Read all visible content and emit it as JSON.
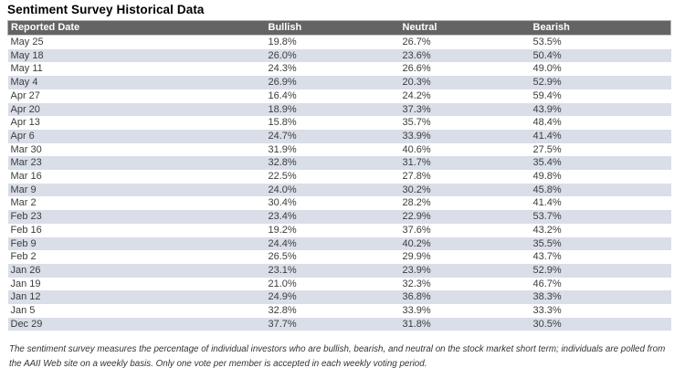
{
  "title": "Sentiment Survey Historical Data",
  "colors": {
    "header_bg": "#646464",
    "header_text": "#ffffff",
    "row_alt_bg": "#d9dee8",
    "body_text": "#3d3d3d"
  },
  "chart_data": {
    "type": "table",
    "title": "Sentiment Survey Historical Data",
    "columns": [
      "Reported Date",
      "Bullish",
      "Neutral",
      "Bearish"
    ],
    "rows": [
      [
        "May 25",
        "19.8%",
        "26.7%",
        "53.5%"
      ],
      [
        "May 18",
        "26.0%",
        "23.6%",
        "50.4%"
      ],
      [
        "May 11",
        "24.3%",
        "26.6%",
        "49.0%"
      ],
      [
        "May 4",
        "26.9%",
        "20.3%",
        "52.9%"
      ],
      [
        "Apr 27",
        "16.4%",
        "24.2%",
        "59.4%"
      ],
      [
        "Apr 20",
        "18.9%",
        "37.3%",
        "43.9%"
      ],
      [
        "Apr 13",
        "15.8%",
        "35.7%",
        "48.4%"
      ],
      [
        "Apr 6",
        "24.7%",
        "33.9%",
        "41.4%"
      ],
      [
        "Mar 30",
        "31.9%",
        "40.6%",
        "27.5%"
      ],
      [
        "Mar 23",
        "32.8%",
        "31.7%",
        "35.4%"
      ],
      [
        "Mar 16",
        "22.5%",
        "27.8%",
        "49.8%"
      ],
      [
        "Mar 9",
        "24.0%",
        "30.2%",
        "45.8%"
      ],
      [
        "Mar 2",
        "30.4%",
        "28.2%",
        "41.4%"
      ],
      [
        "Feb 23",
        "23.4%",
        "22.9%",
        "53.7%"
      ],
      [
        "Feb 16",
        "19.2%",
        "37.6%",
        "43.2%"
      ],
      [
        "Feb 9",
        "24.4%",
        "40.2%",
        "35.5%"
      ],
      [
        "Feb 2",
        "26.5%",
        "29.9%",
        "43.7%"
      ],
      [
        "Jan 26",
        "23.1%",
        "23.9%",
        "52.9%"
      ],
      [
        "Jan 19",
        "21.0%",
        "32.3%",
        "46.7%"
      ],
      [
        "Jan 12",
        "24.9%",
        "36.8%",
        "38.3%"
      ],
      [
        "Jan 5",
        "32.8%",
        "33.9%",
        "33.3%"
      ],
      [
        "Dec 29",
        "37.7%",
        "31.8%",
        "30.5%"
      ]
    ]
  },
  "footnote": "The sentiment survey measures the percentage of individual investors who are bullish, bearish, and neutral on the stock market short term; individuals are polled from the AAII Web site on a weekly basis. Only one vote per member is accepted in each weekly voting period."
}
